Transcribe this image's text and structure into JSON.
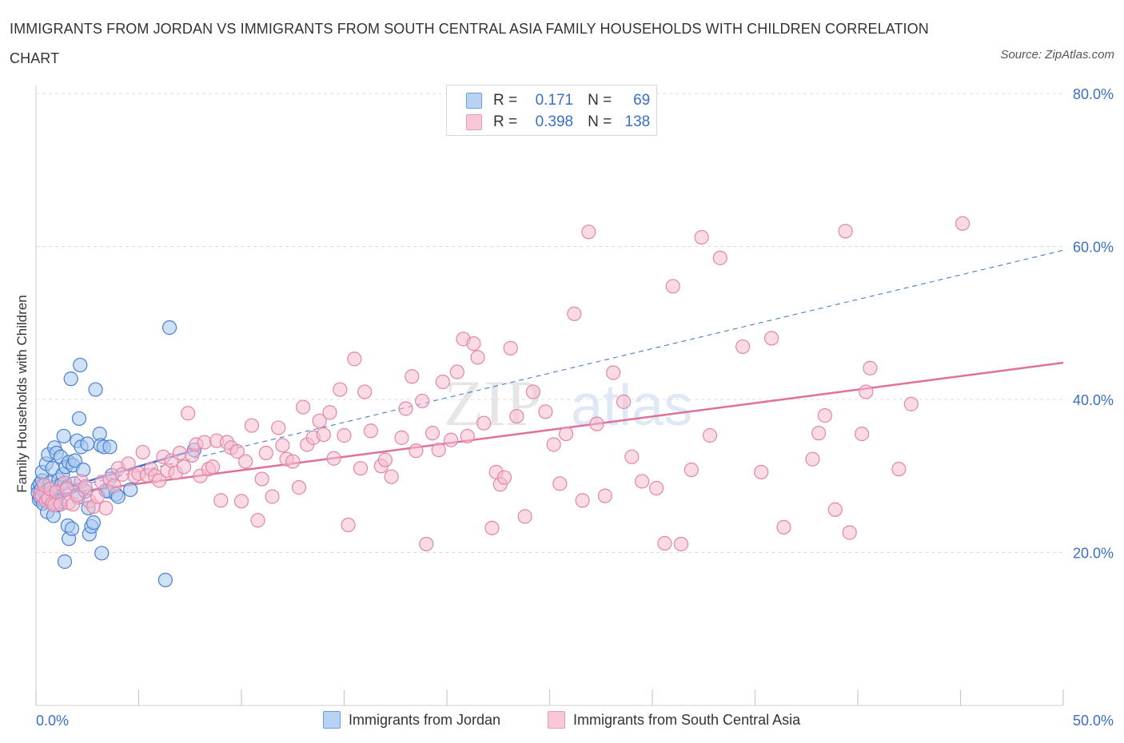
{
  "title": "IMMIGRANTS FROM JORDAN VS IMMIGRANTS FROM SOUTH CENTRAL ASIA FAMILY HOUSEHOLDS WITH CHILDREN CORRELATION CHART",
  "source": "Source: ZipAtlas.com",
  "watermark": {
    "zip": "ZIP",
    "atlas": "atlas"
  },
  "legend": {
    "r_label": "R =",
    "n_label": "N =",
    "items": [
      {
        "r": "0.171",
        "n": "69"
      },
      {
        "r": "0.398",
        "n": "138"
      }
    ]
  },
  "colors": {
    "jordan_fill": "#a8c8f0",
    "jordan_stroke": "#4a80d0",
    "jordan_line": "#3b6fd0",
    "sca_fill": "#f6bcd0",
    "sca_stroke": "#e286a8",
    "sca_line": "#e0709a",
    "axis_value_text": "#3a6fc6",
    "grid": "#dddddd"
  },
  "chart_data": {
    "type": "scatter",
    "title": "IMMIGRANTS FROM JORDAN VS IMMIGRANTS FROM SOUTH CENTRAL ASIA FAMILY HOUSEHOLDS WITH CHILDREN CORRELATION CHART",
    "xlabel": "",
    "ylabel": "Family Households with Children",
    "xlim": [
      0,
      50
    ],
    "ylim": [
      0,
      80
    ],
    "x_tick_labels": [
      {
        "value": 0,
        "label": "0.0%"
      },
      {
        "value": 50,
        "label": "50.0%"
      }
    ],
    "y_tick_labels": [
      {
        "value": 20,
        "label": "20.0%"
      },
      {
        "value": 40,
        "label": "40.0%"
      },
      {
        "value": 60,
        "label": "60.0%"
      },
      {
        "value": 80,
        "label": "80.0%"
      }
    ],
    "gridlines_y": [
      20,
      40,
      60,
      80
    ],
    "legend_position": "bottom",
    "series": [
      {
        "name": "Immigrants from Jordan",
        "r": 0.171,
        "n": 69,
        "trend_solid": [
          [
            0.2,
            27.5
          ],
          [
            8.0,
            33.6
          ]
        ],
        "trend_dashed": [
          [
            0.2,
            27.5
          ],
          [
            50.0,
            59.5
          ]
        ],
        "points": [
          [
            0.1,
            28.5
          ],
          [
            0.1,
            27.8
          ],
          [
            0.15,
            26.9
          ],
          [
            0.2,
            29.0
          ],
          [
            0.2,
            27.2
          ],
          [
            0.25,
            28.2
          ],
          [
            0.3,
            29.4
          ],
          [
            0.3,
            30.5
          ],
          [
            0.35,
            26.4
          ],
          [
            0.4,
            28.8
          ],
          [
            0.45,
            27.6
          ],
          [
            0.5,
            31.6
          ],
          [
            0.5,
            28.0
          ],
          [
            0.55,
            25.3
          ],
          [
            0.6,
            32.8
          ],
          [
            0.65,
            27.0
          ],
          [
            0.7,
            29.1
          ],
          [
            0.75,
            27.8
          ],
          [
            0.8,
            31.0
          ],
          [
            0.85,
            24.8
          ],
          [
            0.9,
            33.7
          ],
          [
            0.95,
            26.5
          ],
          [
            1.0,
            28.6
          ],
          [
            1.0,
            33.0
          ],
          [
            1.05,
            26.2
          ],
          [
            1.1,
            29.5
          ],
          [
            1.15,
            26.6
          ],
          [
            1.2,
            32.5
          ],
          [
            1.25,
            28.9
          ],
          [
            1.3,
            30.2
          ],
          [
            1.35,
            35.2
          ],
          [
            1.4,
            18.8
          ],
          [
            1.45,
            31.2
          ],
          [
            1.5,
            28.5
          ],
          [
            1.55,
            23.5
          ],
          [
            1.6,
            21.8
          ],
          [
            1.6,
            31.8
          ],
          [
            1.7,
            42.7
          ],
          [
            1.75,
            23.1
          ],
          [
            1.8,
            31.4
          ],
          [
            1.85,
            29.0
          ],
          [
            1.9,
            32.0
          ],
          [
            2.0,
            34.6
          ],
          [
            2.05,
            27.2
          ],
          [
            2.1,
            37.5
          ],
          [
            2.15,
            44.5
          ],
          [
            2.2,
            33.8
          ],
          [
            2.3,
            30.8
          ],
          [
            2.4,
            28.0
          ],
          [
            2.5,
            34.2
          ],
          [
            2.55,
            25.8
          ],
          [
            2.6,
            22.4
          ],
          [
            2.7,
            23.4
          ],
          [
            2.8,
            23.9
          ],
          [
            2.9,
            41.3
          ],
          [
            3.1,
            35.5
          ],
          [
            3.15,
            34.0
          ],
          [
            3.2,
            19.9
          ],
          [
            3.3,
            33.8
          ],
          [
            3.4,
            28.1
          ],
          [
            3.5,
            28.0
          ],
          [
            3.6,
            33.8
          ],
          [
            3.7,
            30.1
          ],
          [
            3.9,
            27.6
          ],
          [
            4.0,
            27.3
          ],
          [
            4.6,
            28.2
          ],
          [
            6.3,
            16.4
          ],
          [
            6.5,
            49.4
          ],
          [
            7.7,
            33.4
          ]
        ]
      },
      {
        "name": "Immigrants from South Central Asia",
        "r": 0.398,
        "n": 138,
        "trend_solid": [
          [
            0.2,
            27.3
          ],
          [
            50.0,
            44.8
          ]
        ],
        "points": [
          [
            0.2,
            27.6
          ],
          [
            0.3,
            27.4
          ],
          [
            0.4,
            28.8
          ],
          [
            0.5,
            26.7
          ],
          [
            0.6,
            27.1
          ],
          [
            0.7,
            28.3
          ],
          [
            0.8,
            26.4
          ],
          [
            0.9,
            26.2
          ],
          [
            1.0,
            27.9
          ],
          [
            1.2,
            26.3
          ],
          [
            1.4,
            29.1
          ],
          [
            1.5,
            28.3
          ],
          [
            1.6,
            26.5
          ],
          [
            1.8,
            26.3
          ],
          [
            2.0,
            27.5
          ],
          [
            2.2,
            29.3
          ],
          [
            2.4,
            28.6
          ],
          [
            2.6,
            26.7
          ],
          [
            2.8,
            26.0
          ],
          [
            3.0,
            27.3
          ],
          [
            3.2,
            29.2
          ],
          [
            3.4,
            25.8
          ],
          [
            3.6,
            29.6
          ],
          [
            3.8,
            28.7
          ],
          [
            4.0,
            31.0
          ],
          [
            4.2,
            30.2
          ],
          [
            4.5,
            31.6
          ],
          [
            4.8,
            30.0
          ],
          [
            5.0,
            30.3
          ],
          [
            5.2,
            33.1
          ],
          [
            5.4,
            30.1
          ],
          [
            5.6,
            30.9
          ],
          [
            5.8,
            30.0
          ],
          [
            6.0,
            29.4
          ],
          [
            6.2,
            32.5
          ],
          [
            6.4,
            30.7
          ],
          [
            6.6,
            32.0
          ],
          [
            6.8,
            30.4
          ],
          [
            7.0,
            33.0
          ],
          [
            7.2,
            31.2
          ],
          [
            7.4,
            38.2
          ],
          [
            7.6,
            32.7
          ],
          [
            7.8,
            34.1
          ],
          [
            8.0,
            30.0
          ],
          [
            8.2,
            34.4
          ],
          [
            8.4,
            30.9
          ],
          [
            8.6,
            31.2
          ],
          [
            8.8,
            34.6
          ],
          [
            9.0,
            26.8
          ],
          [
            9.3,
            34.4
          ],
          [
            9.5,
            33.7
          ],
          [
            9.8,
            33.2
          ],
          [
            10.0,
            26.7
          ],
          [
            10.2,
            31.9
          ],
          [
            10.5,
            36.6
          ],
          [
            10.8,
            24.2
          ],
          [
            11.0,
            29.6
          ],
          [
            11.2,
            33.0
          ],
          [
            11.5,
            27.3
          ],
          [
            11.8,
            36.3
          ],
          [
            12.0,
            34.0
          ],
          [
            12.2,
            32.2
          ],
          [
            12.5,
            31.9
          ],
          [
            12.8,
            28.5
          ],
          [
            13.0,
            39.0
          ],
          [
            13.2,
            34.1
          ],
          [
            13.5,
            35.0
          ],
          [
            13.8,
            37.2
          ],
          [
            14.0,
            35.4
          ],
          [
            14.3,
            38.3
          ],
          [
            14.5,
            32.3
          ],
          [
            14.8,
            41.3
          ],
          [
            15.0,
            35.3
          ],
          [
            15.2,
            23.6
          ],
          [
            15.5,
            45.3
          ],
          [
            15.8,
            31.0
          ],
          [
            16.0,
            41.0
          ],
          [
            16.3,
            35.9
          ],
          [
            16.8,
            31.3
          ],
          [
            17.0,
            32.1
          ],
          [
            17.3,
            29.9
          ],
          [
            17.8,
            35.0
          ],
          [
            18.0,
            38.8
          ],
          [
            18.3,
            43.0
          ],
          [
            18.5,
            33.3
          ],
          [
            18.8,
            39.8
          ],
          [
            19.0,
            21.1
          ],
          [
            19.3,
            35.6
          ],
          [
            19.6,
            33.4
          ],
          [
            19.8,
            42.3
          ],
          [
            20.2,
            34.7
          ],
          [
            20.5,
            43.6
          ],
          [
            20.8,
            47.9
          ],
          [
            21.0,
            35.2
          ],
          [
            21.3,
            47.3
          ],
          [
            21.5,
            45.5
          ],
          [
            21.8,
            36.9
          ],
          [
            22.2,
            23.2
          ],
          [
            22.4,
            30.5
          ],
          [
            22.6,
            28.9
          ],
          [
            22.8,
            29.8
          ],
          [
            23.1,
            46.7
          ],
          [
            23.4,
            37.8
          ],
          [
            23.8,
            24.7
          ],
          [
            24.2,
            41.0
          ],
          [
            24.8,
            38.4
          ],
          [
            25.2,
            34.1
          ],
          [
            25.5,
            29.0
          ],
          [
            25.8,
            35.5
          ],
          [
            26.2,
            51.2
          ],
          [
            26.6,
            26.8
          ],
          [
            26.9,
            61.9
          ],
          [
            27.3,
            36.8
          ],
          [
            27.7,
            27.4
          ],
          [
            28.1,
            43.5
          ],
          [
            28.6,
            39.7
          ],
          [
            29.0,
            32.5
          ],
          [
            29.5,
            29.3
          ],
          [
            30.2,
            28.4
          ],
          [
            30.6,
            21.2
          ],
          [
            31.0,
            54.8
          ],
          [
            31.4,
            21.1
          ],
          [
            31.9,
            30.8
          ],
          [
            32.4,
            61.2
          ],
          [
            32.8,
            35.3
          ],
          [
            33.3,
            58.5
          ],
          [
            34.4,
            46.9
          ],
          [
            35.3,
            30.5
          ],
          [
            35.8,
            48.0
          ],
          [
            36.4,
            23.3
          ],
          [
            37.8,
            32.2
          ],
          [
            38.1,
            35.6
          ],
          [
            38.4,
            37.9
          ],
          [
            38.9,
            25.6
          ],
          [
            39.4,
            62.0
          ],
          [
            39.6,
            22.6
          ],
          [
            40.2,
            35.5
          ],
          [
            40.4,
            41.0
          ],
          [
            40.6,
            44.1
          ],
          [
            42.0,
            30.9
          ],
          [
            42.6,
            39.4
          ],
          [
            45.1,
            63.0
          ]
        ]
      }
    ]
  },
  "bottom_legend": {
    "jordan": "Immigrants from Jordan",
    "sca": "Immigrants from South Central Asia"
  }
}
